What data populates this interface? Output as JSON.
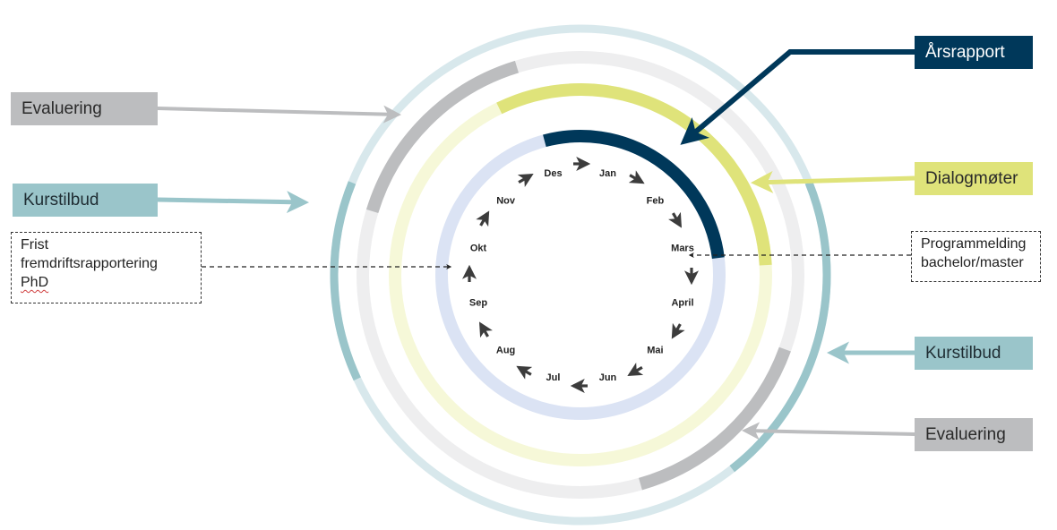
{
  "colors": {
    "teal": "#9ac5ca",
    "teal_light": "#d8e8ec",
    "grey": "#bcbdbf",
    "grey_light": "#eeeeef",
    "yellow": "#dfe37a",
    "yellow_light": "#f6f8d8",
    "navy": "#00385a",
    "blue_light": "#dbe3f4",
    "arrow_dark": "#3c3c3c"
  },
  "months": [
    "Jan",
    "Feb",
    "Mars",
    "April",
    "Mai",
    "Jun",
    "Jul",
    "Aug",
    "Sep",
    "Okt",
    "Nov",
    "Des"
  ],
  "labels": {
    "evaluering_left": "Evaluering",
    "kurstilbud_left": "Kurstilbud",
    "arsrapport": "Årsrapport",
    "dialogmoter": "Dialogmøter",
    "kurstilbud_right": "Kurstilbud",
    "evaluering_right": "Evaluering"
  },
  "notes": {
    "frist": [
      "Frist",
      "fremdriftsrapportering",
      "PhD"
    ],
    "programmelding": [
      "Programmelding",
      "bachelor/master"
    ]
  }
}
